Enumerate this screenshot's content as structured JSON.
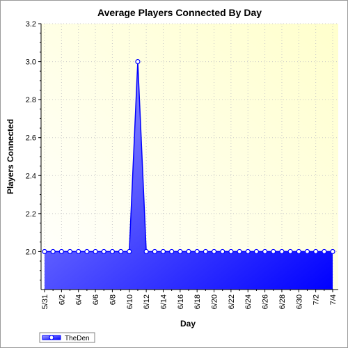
{
  "chart_data": {
    "type": "area",
    "title": "Average Players Connected By Day",
    "xlabel": "Day",
    "ylabel": "Players Connected",
    "ylim": [
      1.8,
      3.2
    ],
    "yticks": [
      "2.0",
      "2.2",
      "2.4",
      "2.6",
      "2.8",
      "3.0",
      "3.2"
    ],
    "grid": true,
    "legend_position": "bottom-left",
    "plot_background": [
      "#ffffcc",
      "#ffffff"
    ],
    "x_labels": [
      "5/31",
      "6/2",
      "6/4",
      "6/6",
      "6/8",
      "6/10",
      "6/12",
      "6/14",
      "6/16",
      "6/18",
      "6/20",
      "6/22",
      "6/24",
      "6/26",
      "6/28",
      "6/30",
      "7/2",
      "7/4"
    ],
    "x": [
      "5/31",
      "6/1",
      "6/2",
      "6/3",
      "6/4",
      "6/5",
      "6/6",
      "6/7",
      "6/8",
      "6/9",
      "6/10",
      "6/11",
      "6/12",
      "6/13",
      "6/14",
      "6/15",
      "6/16",
      "6/17",
      "6/18",
      "6/19",
      "6/20",
      "6/21",
      "6/22",
      "6/23",
      "6/24",
      "6/25",
      "6/26",
      "6/27",
      "6/28",
      "6/29",
      "6/30",
      "7/1",
      "7/2",
      "7/3",
      "7/4"
    ],
    "series": [
      {
        "name": "TheDen",
        "color": "#0000ff",
        "values": [
          2.0,
          2.0,
          2.0,
          2.0,
          2.0,
          2.0,
          2.0,
          2.0,
          2.0,
          2.0,
          2.0,
          3.0,
          2.0,
          2.0,
          2.0,
          2.0,
          2.0,
          2.0,
          2.0,
          2.0,
          2.0,
          2.0,
          2.0,
          2.0,
          2.0,
          2.0,
          2.0,
          2.0,
          2.0,
          2.0,
          2.0,
          2.0,
          2.0,
          2.0,
          2.0
        ]
      }
    ]
  }
}
